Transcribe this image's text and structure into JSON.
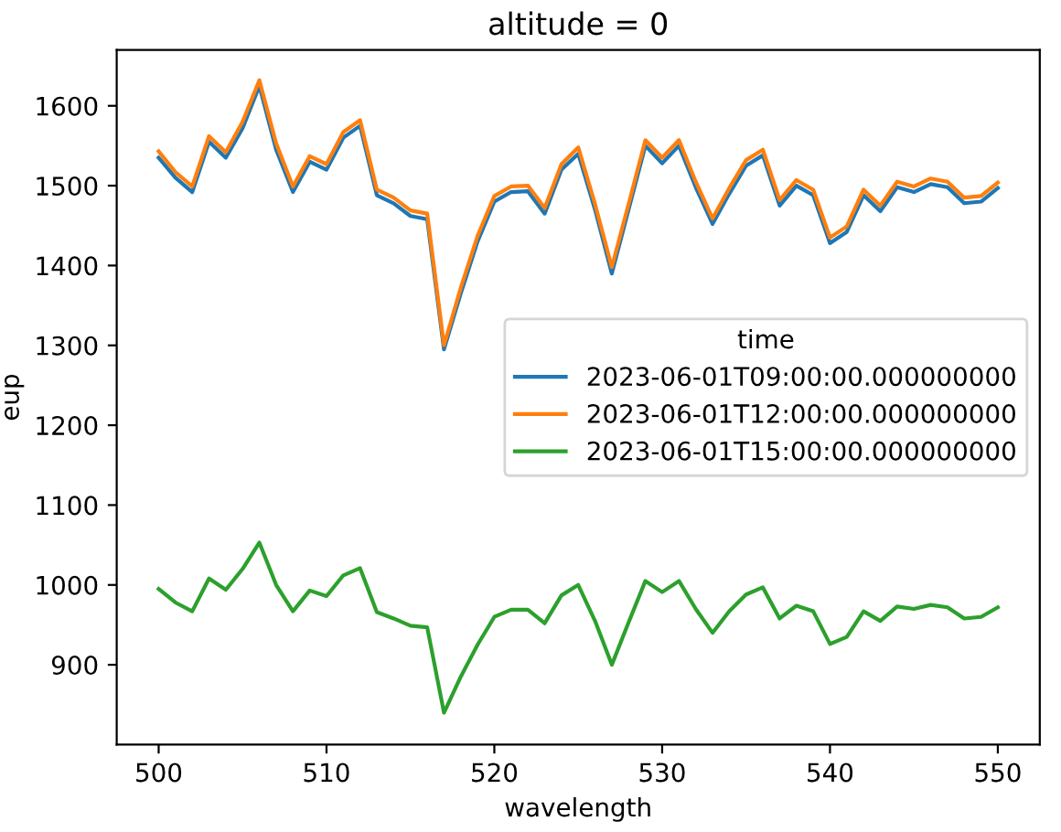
{
  "chart_data": {
    "type": "line",
    "title": "altitude = 0",
    "xlabel": "wavelength",
    "ylabel": "eup",
    "legend_title": "time",
    "legend": "right",
    "x": [
      500,
      501,
      502,
      503,
      504,
      505,
      506,
      507,
      508,
      509,
      510,
      511,
      512,
      513,
      514,
      515,
      516,
      517,
      518,
      519,
      520,
      521,
      522,
      523,
      524,
      525,
      526,
      527,
      528,
      529,
      530,
      531,
      532,
      533,
      534,
      535,
      536,
      537,
      538,
      539,
      540,
      541,
      542,
      543,
      544,
      545,
      546,
      547,
      548,
      549,
      550
    ],
    "series": [
      {
        "name": "2023-06-01T09:00:00.000000000",
        "color": "#1f77b4",
        "values": [
          1535,
          1510,
          1492,
          1555,
          1535,
          1572,
          1625,
          1545,
          1492,
          1530,
          1520,
          1560,
          1575,
          1488,
          1478,
          1462,
          1458,
          1295,
          1365,
          1430,
          1480,
          1492,
          1493,
          1465,
          1520,
          1540,
          1470,
          1390,
          1470,
          1550,
          1528,
          1550,
          1498,
          1452,
          1490,
          1525,
          1538,
          1475,
          1500,
          1488,
          1428,
          1442,
          1488,
          1468,
          1498,
          1492,
          1502,
          1498,
          1478,
          1480,
          1497
        ]
      },
      {
        "name": "2023-06-01T12:00:00.000000000",
        "color": "#ff7f0e",
        "values": [
          1543,
          1517,
          1499,
          1562,
          1542,
          1580,
          1632,
          1553,
          1499,
          1537,
          1527,
          1567,
          1582,
          1495,
          1485,
          1469,
          1465,
          1300,
          1372,
          1437,
          1487,
          1499,
          1500,
          1472,
          1527,
          1548,
          1477,
          1398,
          1477,
          1557,
          1535,
          1557,
          1505,
          1459,
          1497,
          1532,
          1545,
          1482,
          1507,
          1495,
          1435,
          1449,
          1495,
          1475,
          1505,
          1499,
          1509,
          1505,
          1485,
          1487,
          1504
        ]
      },
      {
        "name": "2023-06-01T15:00:00.000000000",
        "color": "#2ca02c",
        "values": [
          995,
          978,
          967,
          1008,
          994,
          1020,
          1053,
          1000,
          967,
          993,
          986,
          1012,
          1021,
          966,
          958,
          949,
          947,
          840,
          885,
          925,
          960,
          969,
          969,
          952,
          987,
          1000,
          955,
          900,
          953,
          1005,
          991,
          1005,
          970,
          940,
          967,
          988,
          997,
          958,
          974,
          967,
          926,
          935,
          967,
          955,
          973,
          970,
          975,
          972,
          958,
          960,
          972
        ]
      }
    ],
    "xlim": [
      497.5,
      552.5
    ],
    "xticks": [
      500,
      510,
      520,
      530,
      540,
      550
    ],
    "ylim": [
      800,
      1670
    ],
    "yticks": [
      900,
      1000,
      1100,
      1200,
      1300,
      1400,
      1500,
      1600
    ],
    "grid": false,
    "marker": "none",
    "line_style": "solid"
  }
}
